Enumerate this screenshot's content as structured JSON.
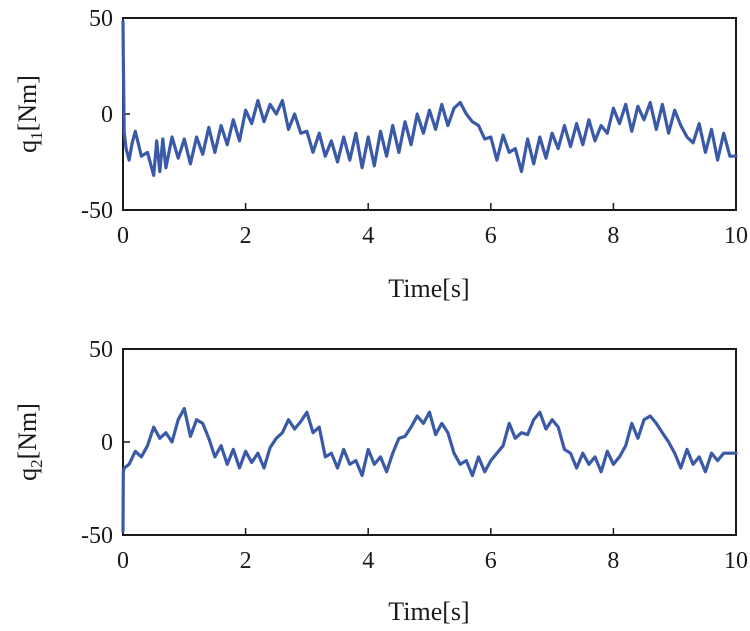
{
  "chart_data": [
    {
      "type": "line",
      "xlabel": "Time[s]",
      "ylabel": {
        "base": "q",
        "sub": "1",
        "unit": "[Nm]"
      },
      "xlim": [
        0,
        10
      ],
      "ylim": [
        -50,
        50
      ],
      "xticks": [
        0,
        2,
        4,
        6,
        8,
        10
      ],
      "xtick_labels": [
        "0",
        "2",
        "4",
        "6",
        "8",
        "10"
      ],
      "yticks": [
        -50,
        0,
        50
      ],
      "ytick_labels": [
        "-50",
        "0",
        "50"
      ],
      "series": [
        {
          "name": "q1",
          "color": "#3a5aa8",
          "x": [
            0,
            0.005,
            0.02,
            0.05,
            0.1,
            0.15,
            0.2,
            0.3,
            0.4,
            0.5,
            0.55,
            0.6,
            0.65,
            0.7,
            0.8,
            0.9,
            1.0,
            1.1,
            1.2,
            1.3,
            1.4,
            1.5,
            1.6,
            1.7,
            1.8,
            1.9,
            2.0,
            2.1,
            2.2,
            2.3,
            2.4,
            2.5,
            2.6,
            2.7,
            2.8,
            2.9,
            3.0,
            3.1,
            3.2,
            3.3,
            3.4,
            3.5,
            3.6,
            3.7,
            3.8,
            3.9,
            4.0,
            4.1,
            4.2,
            4.3,
            4.4,
            4.5,
            4.6,
            4.7,
            4.8,
            4.9,
            5.0,
            5.1,
            5.2,
            5.3,
            5.4,
            5.5,
            5.6,
            5.7,
            5.8,
            5.9,
            6.0,
            6.1,
            6.2,
            6.3,
            6.4,
            6.5,
            6.6,
            6.7,
            6.8,
            6.9,
            7.0,
            7.1,
            7.2,
            7.3,
            7.4,
            7.5,
            7.6,
            7.7,
            7.8,
            7.9,
            8.0,
            8.1,
            8.2,
            8.3,
            8.4,
            8.5,
            8.6,
            8.7,
            8.8,
            8.9,
            9.0,
            9.1,
            9.2,
            9.3,
            9.4,
            9.5,
            9.6,
            9.7,
            9.8,
            9.9,
            10.0
          ],
          "y": [
            48,
            30,
            -10,
            -18,
            -24,
            -15,
            -9,
            -22,
            -20,
            -32,
            -14,
            -30,
            -13,
            -28,
            -12,
            -23,
            -13,
            -26,
            -12,
            -21,
            -7,
            -20,
            -6,
            -16,
            -3,
            -14,
            2,
            -5,
            7,
            -4,
            5,
            0,
            7,
            -8,
            0,
            -10,
            -9,
            -20,
            -10,
            -22,
            -14,
            -25,
            -12,
            -24,
            -10,
            -28,
            -12,
            -27,
            -9,
            -22,
            -6,
            -20,
            -4,
            -16,
            0,
            -10,
            2,
            -8,
            5,
            -6,
            3,
            6,
            0,
            -4,
            -6,
            -13,
            -12,
            -24,
            -11,
            -20,
            -18,
            -30,
            -13,
            -26,
            -12,
            -23,
            -10,
            -18,
            -6,
            -17,
            -5,
            -16,
            -3,
            -14,
            -6,
            -10,
            3,
            -5,
            5,
            -9,
            4,
            -3,
            6,
            -8,
            5,
            -10,
            2,
            -6,
            -12,
            -15,
            -5,
            -20,
            -8,
            -24,
            -10,
            -22,
            -22
          ]
        }
      ]
    },
    {
      "type": "line",
      "xlabel": "Time[s]",
      "ylabel": {
        "base": "q",
        "sub": "2",
        "unit": "[Nm]"
      },
      "xlim": [
        0,
        10
      ],
      "ylim": [
        -50,
        50
      ],
      "xticks": [
        0,
        2,
        4,
        6,
        8,
        10
      ],
      "xtick_labels": [
        "0",
        "2",
        "4",
        "6",
        "8",
        "10"
      ],
      "yticks": [
        -50,
        0,
        50
      ],
      "ytick_labels": [
        "-50",
        "0",
        "50"
      ],
      "series": [
        {
          "name": "q2",
          "color": "#3a5aa8",
          "x": [
            0,
            0.005,
            0.02,
            0.1,
            0.2,
            0.3,
            0.4,
            0.5,
            0.6,
            0.7,
            0.8,
            0.9,
            1.0,
            1.1,
            1.2,
            1.3,
            1.4,
            1.5,
            1.6,
            1.7,
            1.8,
            1.9,
            2.0,
            2.1,
            2.2,
            2.3,
            2.4,
            2.5,
            2.6,
            2.7,
            2.8,
            2.9,
            3.0,
            3.1,
            3.2,
            3.3,
            3.4,
            3.5,
            3.6,
            3.7,
            3.8,
            3.9,
            4.0,
            4.1,
            4.2,
            4.3,
            4.4,
            4.5,
            4.6,
            4.7,
            4.8,
            4.9,
            5.0,
            5.1,
            5.2,
            5.3,
            5.4,
            5.5,
            5.6,
            5.7,
            5.8,
            5.9,
            6.0,
            6.1,
            6.2,
            6.3,
            6.4,
            6.5,
            6.6,
            6.7,
            6.8,
            6.9,
            7.0,
            7.1,
            7.2,
            7.3,
            7.4,
            7.5,
            7.6,
            7.7,
            7.8,
            7.9,
            8.0,
            8.1,
            8.2,
            8.3,
            8.4,
            8.5,
            8.6,
            8.7,
            8.8,
            8.9,
            9.0,
            9.1,
            9.2,
            9.3,
            9.4,
            9.5,
            9.6,
            9.7,
            9.8,
            9.9,
            10.0
          ],
          "y": [
            -48,
            -16,
            -14,
            -12,
            -5,
            -8,
            -2,
            8,
            2,
            5,
            0,
            12,
            18,
            3,
            12,
            10,
            2,
            -8,
            -2,
            -12,
            -4,
            -14,
            -5,
            -11,
            -6,
            -14,
            -3,
            2,
            5,
            12,
            7,
            11,
            16,
            5,
            8,
            -8,
            -6,
            -14,
            -4,
            -12,
            -10,
            -18,
            -4,
            -12,
            -8,
            -16,
            -6,
            2,
            3,
            8,
            14,
            10,
            16,
            4,
            10,
            5,
            -6,
            -12,
            -10,
            -18,
            -8,
            -16,
            -10,
            -6,
            -2,
            10,
            2,
            5,
            4,
            12,
            16,
            7,
            12,
            8,
            -4,
            -6,
            -14,
            -6,
            -12,
            -8,
            -16,
            -5,
            -12,
            -8,
            -2,
            10,
            2,
            12,
            14,
            10,
            5,
            0,
            -6,
            -14,
            -4,
            -12,
            -8,
            -16,
            -6,
            -10,
            -6,
            -6,
            -6
          ]
        }
      ]
    }
  ]
}
